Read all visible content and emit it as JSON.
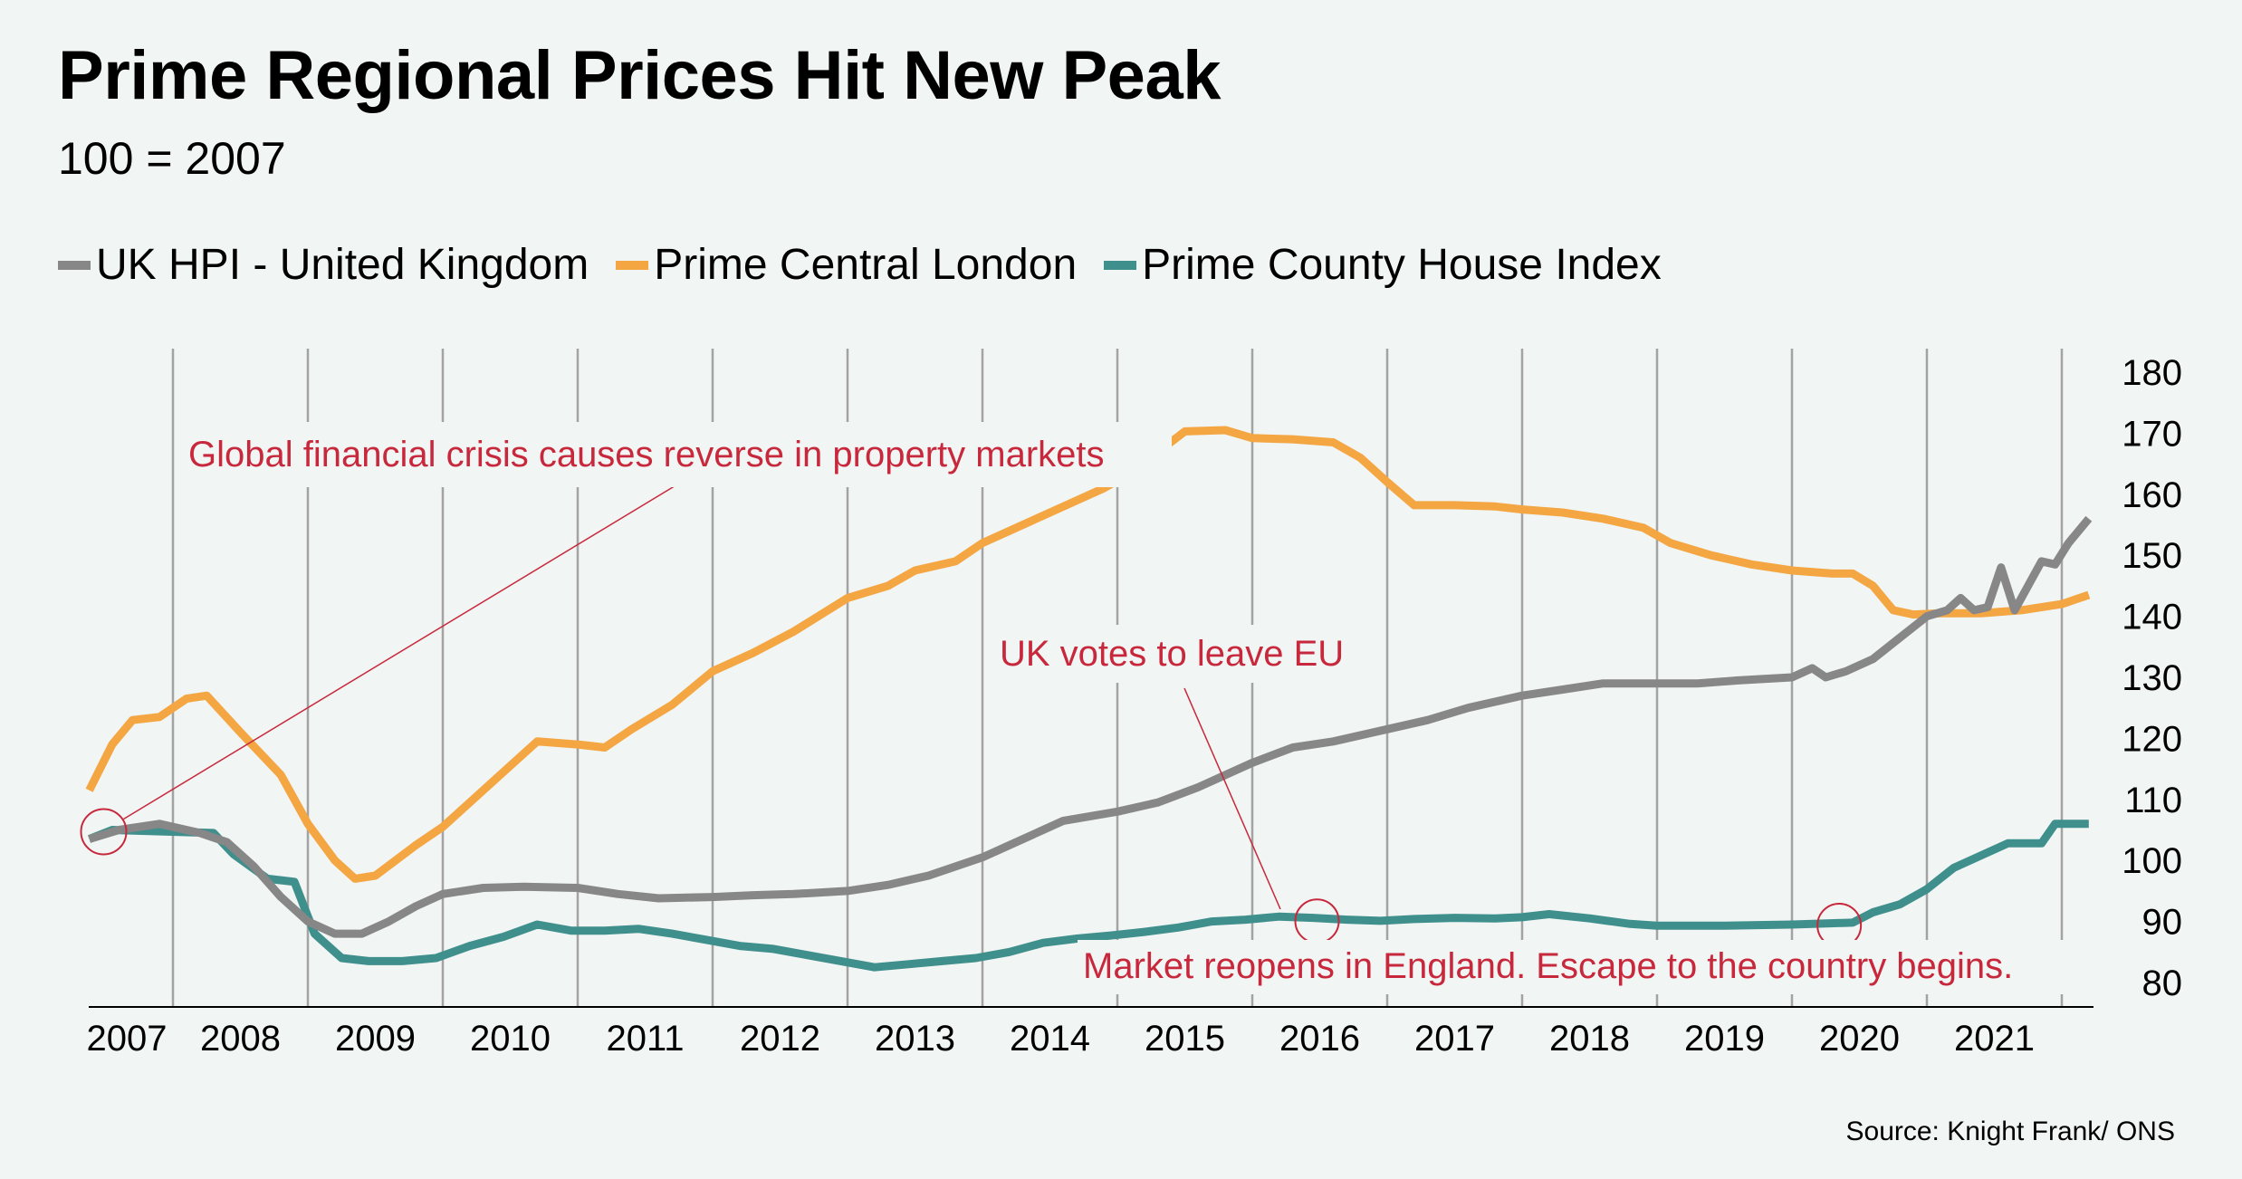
{
  "title": "Prime Regional Prices Hit New Peak",
  "subtitle": "100 = 2007",
  "source": "Source: Knight Frank/ ONS",
  "legend": [
    {
      "label": "UK HPI - United Kingdom",
      "color": "#878787"
    },
    {
      "label": "Prime Central London",
      "color": "#F4A643"
    },
    {
      "label": "Prime County House Index",
      "color": "#3F8F8C"
    }
  ],
  "colors": {
    "annotation": "#C8283C",
    "gridline": "#A0A0A0",
    "axis": "#000000",
    "background": "#F1F5F4"
  },
  "chart_data": {
    "type": "line",
    "title": "Prime Regional Prices Hit New Peak",
    "subtitle": "100 = 2007",
    "xlabel": "",
    "ylabel": "",
    "x_ticks": [
      "2007",
      "2008",
      "2009",
      "2010",
      "2011",
      "2012",
      "2013",
      "2014",
      "2015",
      "2016",
      "2017",
      "2018",
      "2019",
      "2020",
      "2021"
    ],
    "xlim": [
      2007.38,
      2022.2
    ],
    "ylim": [
      80,
      180
    ],
    "y_ticks": [
      80,
      90,
      100,
      110,
      120,
      130,
      140,
      150,
      160,
      170,
      180
    ],
    "y_axis_side": "right",
    "grid": "vertical year separators",
    "legend_position": "top-left",
    "series": [
      {
        "name": "UK HPI - United Kingdom",
        "color": "#878787",
        "points": [
          [
            2007.38,
            103.5
          ],
          [
            2007.6,
            105
          ],
          [
            2007.9,
            106
          ],
          [
            2008.2,
            104.5
          ],
          [
            2008.4,
            103
          ],
          [
            2008.6,
            99
          ],
          [
            2008.8,
            94
          ],
          [
            2009.0,
            90
          ],
          [
            2009.2,
            88
          ],
          [
            2009.4,
            88
          ],
          [
            2009.6,
            90
          ],
          [
            2009.8,
            92.5
          ],
          [
            2010.0,
            94.5
          ],
          [
            2010.3,
            95.5
          ],
          [
            2010.6,
            95.7
          ],
          [
            2011.0,
            95.5
          ],
          [
            2011.3,
            94.5
          ],
          [
            2011.6,
            93.8
          ],
          [
            2012.0,
            94
          ],
          [
            2012.3,
            94.3
          ],
          [
            2012.6,
            94.5
          ],
          [
            2013.0,
            95
          ],
          [
            2013.3,
            96
          ],
          [
            2013.6,
            97.5
          ],
          [
            2014.0,
            100.5
          ],
          [
            2014.3,
            103.5
          ],
          [
            2014.6,
            106.5
          ],
          [
            2015.0,
            108
          ],
          [
            2015.3,
            109.5
          ],
          [
            2015.6,
            112
          ],
          [
            2016.0,
            116
          ],
          [
            2016.3,
            118.5
          ],
          [
            2016.6,
            119.5
          ],
          [
            2017.0,
            121.5
          ],
          [
            2017.3,
            123
          ],
          [
            2017.6,
            125
          ],
          [
            2018.0,
            127
          ],
          [
            2018.3,
            128
          ],
          [
            2018.6,
            129
          ],
          [
            2019.0,
            129
          ],
          [
            2019.3,
            129
          ],
          [
            2019.6,
            129.5
          ],
          [
            2020.0,
            130
          ],
          [
            2020.15,
            131.5
          ],
          [
            2020.25,
            130
          ],
          [
            2020.4,
            131
          ],
          [
            2020.6,
            133
          ],
          [
            2020.8,
            136.5
          ],
          [
            2021.0,
            140
          ],
          [
            2021.15,
            141
          ],
          [
            2021.25,
            143
          ],
          [
            2021.35,
            141
          ],
          [
            2021.45,
            141.5
          ],
          [
            2021.55,
            148
          ],
          [
            2021.65,
            141
          ],
          [
            2021.85,
            149
          ],
          [
            2021.95,
            148.5
          ],
          [
            2022.05,
            152
          ],
          [
            2022.2,
            156
          ]
        ]
      },
      {
        "name": "Prime Central London",
        "color": "#F4A643",
        "points": [
          [
            2007.38,
            111.5
          ],
          [
            2007.55,
            119
          ],
          [
            2007.7,
            123
          ],
          [
            2007.9,
            123.5
          ],
          [
            2008.1,
            126.5
          ],
          [
            2008.25,
            127
          ],
          [
            2008.5,
            121
          ],
          [
            2008.8,
            114
          ],
          [
            2009.0,
            106
          ],
          [
            2009.2,
            100
          ],
          [
            2009.35,
            97
          ],
          [
            2009.5,
            97.5
          ],
          [
            2009.8,
            102.5
          ],
          [
            2010.0,
            105.5
          ],
          [
            2010.2,
            109.5
          ],
          [
            2010.5,
            115.5
          ],
          [
            2010.7,
            119.5
          ],
          [
            2011.0,
            119
          ],
          [
            2011.2,
            118.5
          ],
          [
            2011.4,
            121.5
          ],
          [
            2011.7,
            125.5
          ],
          [
            2012.0,
            131
          ],
          [
            2012.3,
            134
          ],
          [
            2012.6,
            137.5
          ],
          [
            2013.0,
            143
          ],
          [
            2013.3,
            145
          ],
          [
            2013.5,
            147.5
          ],
          [
            2013.8,
            149
          ],
          [
            2014.0,
            152
          ],
          [
            2014.3,
            155
          ],
          [
            2014.6,
            158
          ],
          [
            2014.9,
            161
          ],
          [
            2015.1,
            163.5
          ],
          [
            2015.5,
            170.3
          ],
          [
            2015.8,
            170.5
          ],
          [
            2016.0,
            169.2
          ],
          [
            2016.3,
            169
          ],
          [
            2016.6,
            168.5
          ],
          [
            2016.8,
            166
          ],
          [
            2017.0,
            162
          ],
          [
            2017.2,
            158.2
          ],
          [
            2017.5,
            158.2
          ],
          [
            2017.8,
            158
          ],
          [
            2018.0,
            157.5
          ],
          [
            2018.3,
            157
          ],
          [
            2018.6,
            156
          ],
          [
            2018.9,
            154.5
          ],
          [
            2019.1,
            152
          ],
          [
            2019.4,
            150
          ],
          [
            2019.7,
            148.5
          ],
          [
            2020.0,
            147.5
          ],
          [
            2020.3,
            147
          ],
          [
            2020.45,
            147
          ],
          [
            2020.6,
            145
          ],
          [
            2020.75,
            141
          ],
          [
            2020.9,
            140.3
          ],
          [
            2021.1,
            140.5
          ],
          [
            2021.4,
            140.5
          ],
          [
            2021.7,
            141
          ],
          [
            2022.0,
            142
          ],
          [
            2022.2,
            143.5
          ]
        ]
      },
      {
        "name": "Prime County House Index",
        "color": "#3F8F8C",
        "points": [
          [
            2007.38,
            103.5
          ],
          [
            2007.55,
            105
          ],
          [
            2008.3,
            104.5
          ],
          [
            2008.45,
            101
          ],
          [
            2008.7,
            97
          ],
          [
            2008.9,
            96.5
          ],
          [
            2009.05,
            88
          ],
          [
            2009.25,
            84
          ],
          [
            2009.45,
            83.5
          ],
          [
            2009.7,
            83.5
          ],
          [
            2009.95,
            84
          ],
          [
            2010.2,
            86
          ],
          [
            2010.45,
            87.5
          ],
          [
            2010.7,
            89.5
          ],
          [
            2010.95,
            88.5
          ],
          [
            2011.2,
            88.5
          ],
          [
            2011.45,
            88.8
          ],
          [
            2011.7,
            88
          ],
          [
            2011.95,
            87
          ],
          [
            2012.2,
            86
          ],
          [
            2012.45,
            85.5
          ],
          [
            2012.7,
            84.5
          ],
          [
            2012.95,
            83.5
          ],
          [
            2013.2,
            82.5
          ],
          [
            2013.45,
            83
          ],
          [
            2013.7,
            83.5
          ],
          [
            2013.95,
            84
          ],
          [
            2014.2,
            85
          ],
          [
            2014.45,
            86.5
          ],
          [
            2014.7,
            87.2
          ],
          [
            2014.95,
            87.7
          ],
          [
            2015.2,
            88.3
          ],
          [
            2015.45,
            89
          ],
          [
            2015.7,
            90
          ],
          [
            2015.95,
            90.3
          ],
          [
            2016.2,
            90.8
          ],
          [
            2016.45,
            90.6
          ],
          [
            2016.7,
            90.3
          ],
          [
            2016.95,
            90.1
          ],
          [
            2017.2,
            90.4
          ],
          [
            2017.5,
            90.6
          ],
          [
            2017.8,
            90.5
          ],
          [
            2018.0,
            90.7
          ],
          [
            2018.2,
            91.2
          ],
          [
            2018.5,
            90.5
          ],
          [
            2018.8,
            89.6
          ],
          [
            2019.0,
            89.3
          ],
          [
            2019.5,
            89.3
          ],
          [
            2020.0,
            89.5
          ],
          [
            2020.45,
            89.8
          ],
          [
            2020.6,
            91.5
          ],
          [
            2020.8,
            92.8
          ],
          [
            2021.0,
            95.3
          ],
          [
            2021.2,
            98.8
          ],
          [
            2021.4,
            100.8
          ],
          [
            2021.6,
            102.8
          ],
          [
            2021.85,
            102.8
          ],
          [
            2021.95,
            106
          ],
          [
            2022.2,
            106
          ]
        ]
      }
    ],
    "annotations": [
      {
        "text": "Global financial crisis causes reverse in property markets",
        "target": [
          2007.5,
          105
        ]
      },
      {
        "text": "UK votes to leave EU",
        "target": [
          2016.5,
          90.5
        ]
      },
      {
        "text": "Market reopens in England. Escape to the country begins.",
        "target": [
          2020.35,
          89.8
        ]
      }
    ]
  }
}
